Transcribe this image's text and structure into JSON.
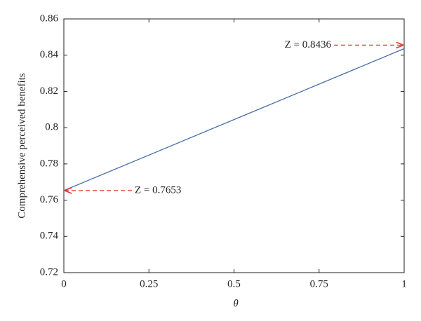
{
  "chart_data": {
    "type": "line",
    "x_label": "θ",
    "y_label": "Comprehensive perceived benefits",
    "x": [
      0,
      1
    ],
    "series": [
      {
        "name": "Z",
        "color": "#4a6fa5",
        "values": [
          0.7653,
          0.8436
        ]
      }
    ],
    "xlim": [
      0,
      1
    ],
    "xticks": [
      0,
      0.25,
      0.5,
      0.75,
      1
    ],
    "ylim": [
      0.72,
      0.86
    ],
    "yticks": [
      0.72,
      0.74,
      0.76,
      0.78,
      0.8,
      0.82,
      0.84,
      0.86
    ],
    "annotations": [
      "Z = 0.7653",
      "Z = 0.8436"
    ],
    "annotation_color": "#e0392b"
  }
}
